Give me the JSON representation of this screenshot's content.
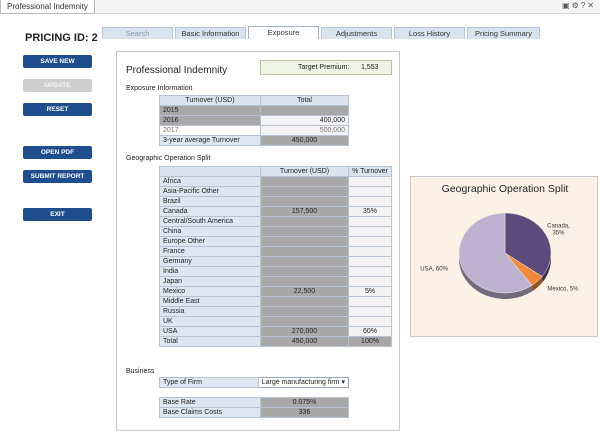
{
  "window": {
    "doc_tab": "Professional Indemnity",
    "icons": "▣⚙?✕"
  },
  "pricing": {
    "label": "PRICING ID:",
    "id": "2"
  },
  "sidebar": {
    "save": "SAVE NEW",
    "update": "UPDATE",
    "reset": "RESET",
    "open_pdf": "OPEN PDF",
    "submit": "SUBMIT REPORT",
    "exit": "EXIT"
  },
  "tabs": [
    {
      "label": "Search"
    },
    {
      "label": "Basic Information"
    },
    {
      "label": "Exposure"
    },
    {
      "label": "Adjustments"
    },
    {
      "label": "Loss History"
    },
    {
      "label": "Pricing Summary"
    }
  ],
  "panel": {
    "title": "Professional Indemnity",
    "target_premium_label": "Target Premium:",
    "target_premium_value": "1,553",
    "exposure_label": "Exposure Information",
    "geo_label": "Geographic Operation Split",
    "business_label": "Business"
  },
  "exposure_table": {
    "headers": [
      "Turnover (USD)",
      "Total"
    ],
    "rows": [
      {
        "label": "2015",
        "value": ""
      },
      {
        "label": "2016",
        "value": "400,000"
      },
      {
        "label": "2017",
        "value": "500,000"
      }
    ],
    "avg_label": "3-year average Turnover",
    "avg_value": "450,000"
  },
  "geo_table": {
    "headers": [
      "",
      "Turnover (USD)",
      "% Turnover"
    ],
    "rows": [
      {
        "region": "Africa",
        "turnover": "",
        "pct": ""
      },
      {
        "region": "Asia-Pacific Other",
        "turnover": "",
        "pct": ""
      },
      {
        "region": "Brazil",
        "turnover": "",
        "pct": ""
      },
      {
        "region": "Canada",
        "turnover": "157,500",
        "pct": "35%"
      },
      {
        "region": "Central/South America",
        "turnover": "",
        "pct": ""
      },
      {
        "region": "China",
        "turnover": "",
        "pct": ""
      },
      {
        "region": "Europe Other",
        "turnover": "",
        "pct": ""
      },
      {
        "region": "France",
        "turnover": "",
        "pct": ""
      },
      {
        "region": "Germany",
        "turnover": "",
        "pct": ""
      },
      {
        "region": "India",
        "turnover": "",
        "pct": ""
      },
      {
        "region": "Japan",
        "turnover": "",
        "pct": ""
      },
      {
        "region": "Mexico",
        "turnover": "22,500",
        "pct": "5%"
      },
      {
        "region": "Middle East",
        "turnover": "",
        "pct": ""
      },
      {
        "region": "Russia",
        "turnover": "",
        "pct": ""
      },
      {
        "region": "UK",
        "turnover": "",
        "pct": ""
      },
      {
        "region": "USA",
        "turnover": "270,000",
        "pct": "60%"
      }
    ],
    "total_label": "Total",
    "total_turnover": "450,000",
    "total_pct": "100%"
  },
  "business": {
    "type_label": "Type of Firm",
    "type_value": "Large manufacturing firm",
    "base_rate_label": "Base Rate",
    "base_rate_value": "0.075%",
    "claims_label": "Base Claims Costs",
    "claims_value": "336"
  },
  "chart_data": {
    "type": "pie",
    "title": "Geographic Operation Split",
    "slices": [
      {
        "label": "Canada, 35%",
        "value": 35,
        "color": "#5b4a7a"
      },
      {
        "label": "Mexico, 5%",
        "value": 5,
        "color": "#f08a3c"
      },
      {
        "label": "USA, 60%",
        "value": 60,
        "color": "#bdb3d0"
      }
    ]
  }
}
